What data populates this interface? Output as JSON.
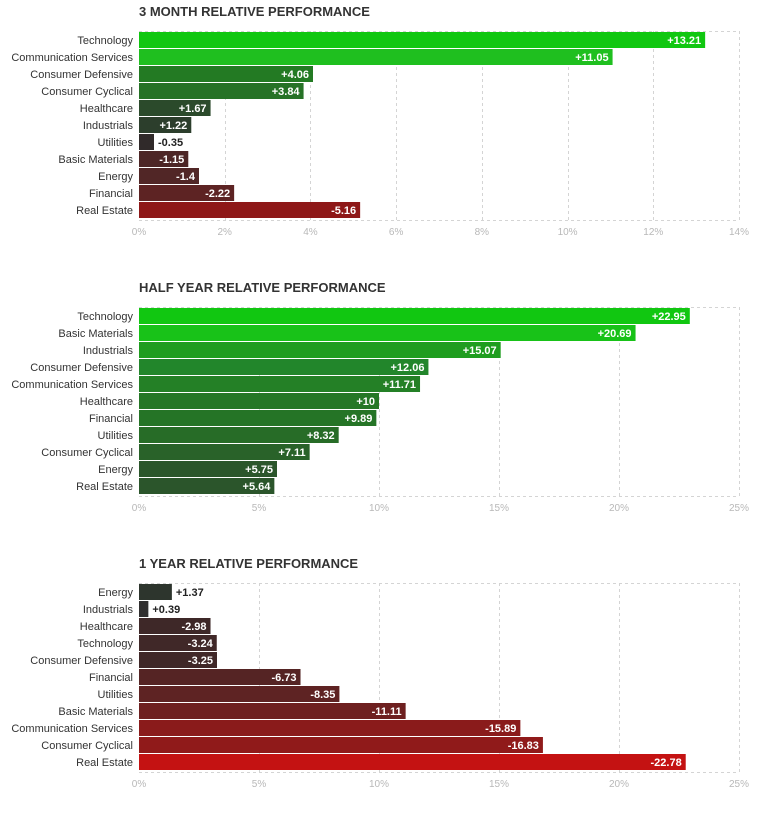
{
  "chart_data": [
    {
      "type": "bar",
      "orientation": "horizontal",
      "title": "3 MONTH RELATIVE PERFORMANCE",
      "categories": [
        "Technology",
        "Communication Services",
        "Consumer Defensive",
        "Consumer Cyclical",
        "Healthcare",
        "Industrials",
        "Utilities",
        "Basic Materials",
        "Energy",
        "Financial",
        "Real Estate"
      ],
      "values": [
        13.21,
        11.05,
        4.06,
        3.84,
        1.67,
        1.22,
        -0.35,
        -1.15,
        -1.4,
        -2.22,
        -5.16
      ],
      "value_labels": [
        "+13.21",
        "+11.05",
        "+4.06",
        "+3.84",
        "+1.67",
        "+1.22",
        "-0.35",
        "-1.15",
        "-1.4",
        "-2.22",
        "-5.16"
      ],
      "colors": [
        "#11c711",
        "#1fbf1f",
        "#237a23",
        "#267226",
        "#2b4a2b",
        "#2c3e2c",
        "#302a2a",
        "#4d2626",
        "#512626",
        "#5d2323",
        "#8e1818"
      ],
      "xlim": [
        0,
        14
      ],
      "ticks": [
        0,
        2,
        4,
        6,
        8,
        10,
        12,
        14
      ],
      "tick_labels": [
        "0%",
        "2%",
        "4%",
        "6%",
        "8%",
        "10%",
        "12%",
        "14%"
      ],
      "xlabel": "",
      "ylabel": ""
    },
    {
      "type": "bar",
      "orientation": "horizontal",
      "title": "HALF YEAR RELATIVE PERFORMANCE",
      "categories": [
        "Technology",
        "Basic Materials",
        "Industrials",
        "Consumer Defensive",
        "Communication Services",
        "Healthcare",
        "Financial",
        "Utilities",
        "Consumer Cyclical",
        "Energy",
        "Real Estate"
      ],
      "values": [
        22.95,
        20.69,
        15.07,
        12.06,
        11.71,
        10,
        9.89,
        8.32,
        7.11,
        5.75,
        5.64
      ],
      "value_labels": [
        "+22.95",
        "+20.69",
        "+15.07",
        "+12.06",
        "+11.71",
        "+10",
        "+9.89",
        "+8.32",
        "+7.11",
        "+5.75",
        "+5.64"
      ],
      "colors": [
        "#11c711",
        "#18c218",
        "#1f9d1f",
        "#22862b",
        "#248026",
        "#257726",
        "#257426",
        "#276c27",
        "#296229",
        "#2b562b",
        "#2b552b"
      ],
      "xlim": [
        0,
        25
      ],
      "ticks": [
        0,
        5,
        10,
        15,
        20,
        25
      ],
      "tick_labels": [
        "0%",
        "5%",
        "10%",
        "15%",
        "20%",
        "25%"
      ],
      "xlabel": "",
      "ylabel": ""
    },
    {
      "type": "bar",
      "orientation": "horizontal",
      "title": "1 YEAR RELATIVE PERFORMANCE",
      "categories": [
        "Energy",
        "Industrials",
        "Healthcare",
        "Technology",
        "Consumer Defensive",
        "Financial",
        "Utilities",
        "Basic Materials",
        "Communication Services",
        "Consumer Cyclical",
        "Real Estate"
      ],
      "values": [
        1.37,
        0.39,
        -2.98,
        -3.24,
        -3.25,
        -6.73,
        -8.35,
        -11.11,
        -15.89,
        -16.83,
        -22.78
      ],
      "value_labels": [
        "+1.37",
        "+0.39",
        "-2.98",
        "-3.24",
        "-3.25",
        "-6.73",
        "-8.35",
        "-11.11",
        "-15.89",
        "-16.83",
        "-22.78"
      ],
      "colors": [
        "#2d352d",
        "#302f2f",
        "#3e2828",
        "#402828",
        "#402828",
        "#552424",
        "#5e2323",
        "#6e2020",
        "#8a1b1b",
        "#901a1a",
        "#c41212"
      ],
      "xlim": [
        0,
        25
      ],
      "ticks": [
        0,
        5,
        10,
        15,
        20,
        25
      ],
      "tick_labels": [
        "0%",
        "5%",
        "10%",
        "15%",
        "20%",
        "25%"
      ],
      "xlabel": "",
      "ylabel": ""
    }
  ]
}
